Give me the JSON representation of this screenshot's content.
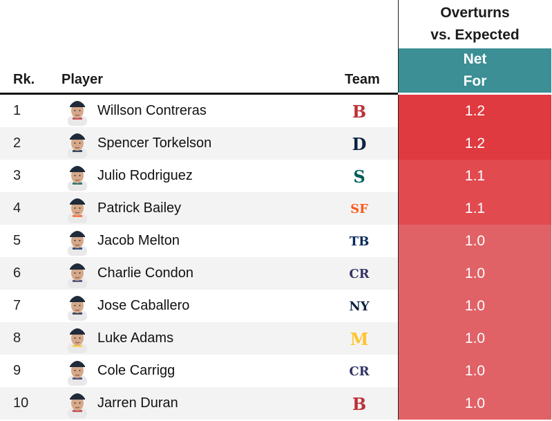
{
  "header": {
    "group_line1": "Overturns",
    "group_line2": "vs. Expected",
    "net_line1": "Net",
    "net_line2": "For",
    "rk": "Rk.",
    "player": "Player",
    "team": "Team"
  },
  "colors": {
    "net_header": "#3b8f95",
    "heat_high": "#de3a3f",
    "heat_mid": "#e14a4f",
    "heat_low": "#e06266"
  },
  "rows": [
    {
      "rank": "1",
      "player": "Willson Contreras",
      "team_logo": "B",
      "team_color": "#bd3039",
      "net": "1.2"
    },
    {
      "rank": "2",
      "player": "Spencer Torkelson",
      "team_logo": "D",
      "team_color": "#0c2340",
      "net": "1.2"
    },
    {
      "rank": "3",
      "player": "Julio Rodriguez",
      "team_logo": "S",
      "team_color": "#005c5c",
      "net": "1.1"
    },
    {
      "rank": "4",
      "player": "Patrick Bailey",
      "team_logo": "SF",
      "team_color": "#fd5a1e",
      "net": "1.1"
    },
    {
      "rank": "5",
      "player": "Jacob Melton",
      "team_logo": "TB",
      "team_color": "#092c5c",
      "net": "1.0"
    },
    {
      "rank": "6",
      "player": "Charlie Condon",
      "team_logo": "CR",
      "team_color": "#333366",
      "net": "1.0"
    },
    {
      "rank": "7",
      "player": "Jose Caballero",
      "team_logo": "NY",
      "team_color": "#0c2340",
      "net": "1.0"
    },
    {
      "rank": "8",
      "player": "Luke Adams",
      "team_logo": "M",
      "team_color": "#ffc52f",
      "net": "1.0"
    },
    {
      "rank": "9",
      "player": "Cole Carrigg",
      "team_logo": "CR",
      "team_color": "#333366",
      "net": "1.0"
    },
    {
      "rank": "10",
      "player": "Jarren Duran",
      "team_logo": "B",
      "team_color": "#bd3039",
      "net": "1.0"
    }
  ]
}
